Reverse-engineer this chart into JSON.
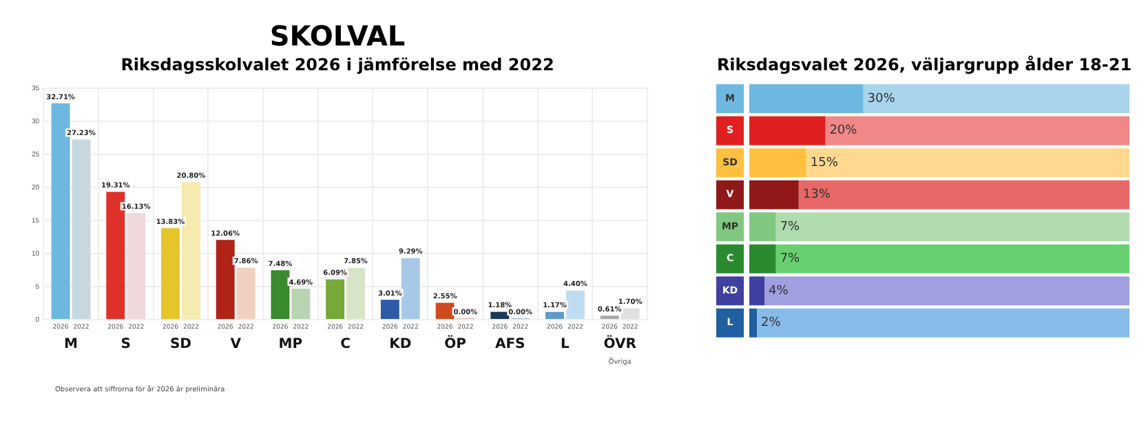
{
  "chart_data": [
    {
      "type": "bar",
      "title": "SKOLVAL",
      "subtitle": "Riksdagsskolvalet 2026 i jämförelse med 2022",
      "categories": [
        "M",
        "S",
        "SD",
        "V",
        "MP",
        "C",
        "KD",
        "ÖP",
        "AFS",
        "L",
        "ÖVR"
      ],
      "series": [
        {
          "name": "2026",
          "colors": [
            "#6cb8e0",
            "#e0302a",
            "#e6c52a",
            "#b02418",
            "#3a8a2e",
            "#76a83a",
            "#2e5aa8",
            "#d04a20",
            "#1a3a5a",
            "#5c9ad0",
            "#a8a8a8"
          ],
          "values": [
            32.71,
            19.31,
            13.83,
            12.06,
            7.48,
            6.09,
            3.01,
            2.55,
            1.18,
            1.17,
            0.61
          ],
          "value_labels": [
            "32.71%",
            "19.31%",
            "13.83%",
            "12.06%",
            "7.48%",
            "6.09%",
            "3.01%",
            "2.55%",
            "1.18%",
            "1.17%",
            "0.61%"
          ]
        },
        {
          "name": "2022",
          "colors": [
            "#c8d8e0",
            "#f0d8dc",
            "#f5eab0",
            "#f0d0c0",
            "#b8d4b0",
            "#d8e4c8",
            "#a8c8e8",
            "#e0b0a0",
            "#a0b0c0",
            "#c0dcf0",
            "#e0e0e0"
          ],
          "values": [
            27.23,
            16.13,
            20.8,
            7.86,
            4.69,
            7.85,
            9.29,
            0.0,
            0.0,
            4.4,
            1.7
          ],
          "value_labels": [
            "27.23%",
            "16.13%",
            "20.80%",
            "7.86%",
            "4.69%",
            "7.85%",
            "9.29%",
            "0.00%",
            "0.00%",
            "4.40%",
            "1.70%"
          ]
        }
      ],
      "ylim": [
        0,
        35
      ],
      "yticks": [
        0,
        5,
        10,
        15,
        20,
        25,
        30,
        35
      ],
      "grid": true,
      "legend": false,
      "annotations": [
        "Övriga",
        "Observera att siffrorna för år 2026 är preliminära"
      ]
    },
    {
      "type": "bar",
      "orientation": "horizontal",
      "stacked": true,
      "subtitle": "Riksdagsvalet 2026, väljargrupp ålder 18-21",
      "categories": [
        "M",
        "S",
        "SD",
        "V",
        "MP",
        "C",
        "KD",
        "L"
      ],
      "series": [
        {
          "colors": [
            "#6cb8e0",
            "#e02020",
            "#ffc040",
            "#901818",
            "#80c880",
            "#2a8a30",
            "#4040a0",
            "#2060a0"
          ],
          "values": [
            30,
            20,
            15,
            13,
            7,
            7,
            4,
            2
          ],
          "value_labels": [
            "30%",
            "20%",
            "15%",
            "13%",
            "7%",
            "7%",
            "4%",
            "2%"
          ]
        },
        {
          "colors": [
            "#a8d4ec",
            "#f08888",
            "#ffd890",
            "#e86868",
            "#b0dcb0",
            "#68d070",
            "#a0a0e0",
            "#88bce8"
          ],
          "values": [
            70,
            80,
            85,
            87,
            93,
            93,
            96,
            98
          ]
        }
      ],
      "xlim": [
        0,
        100
      ],
      "tick_labels": false,
      "grid": false,
      "legend": false
    }
  ]
}
